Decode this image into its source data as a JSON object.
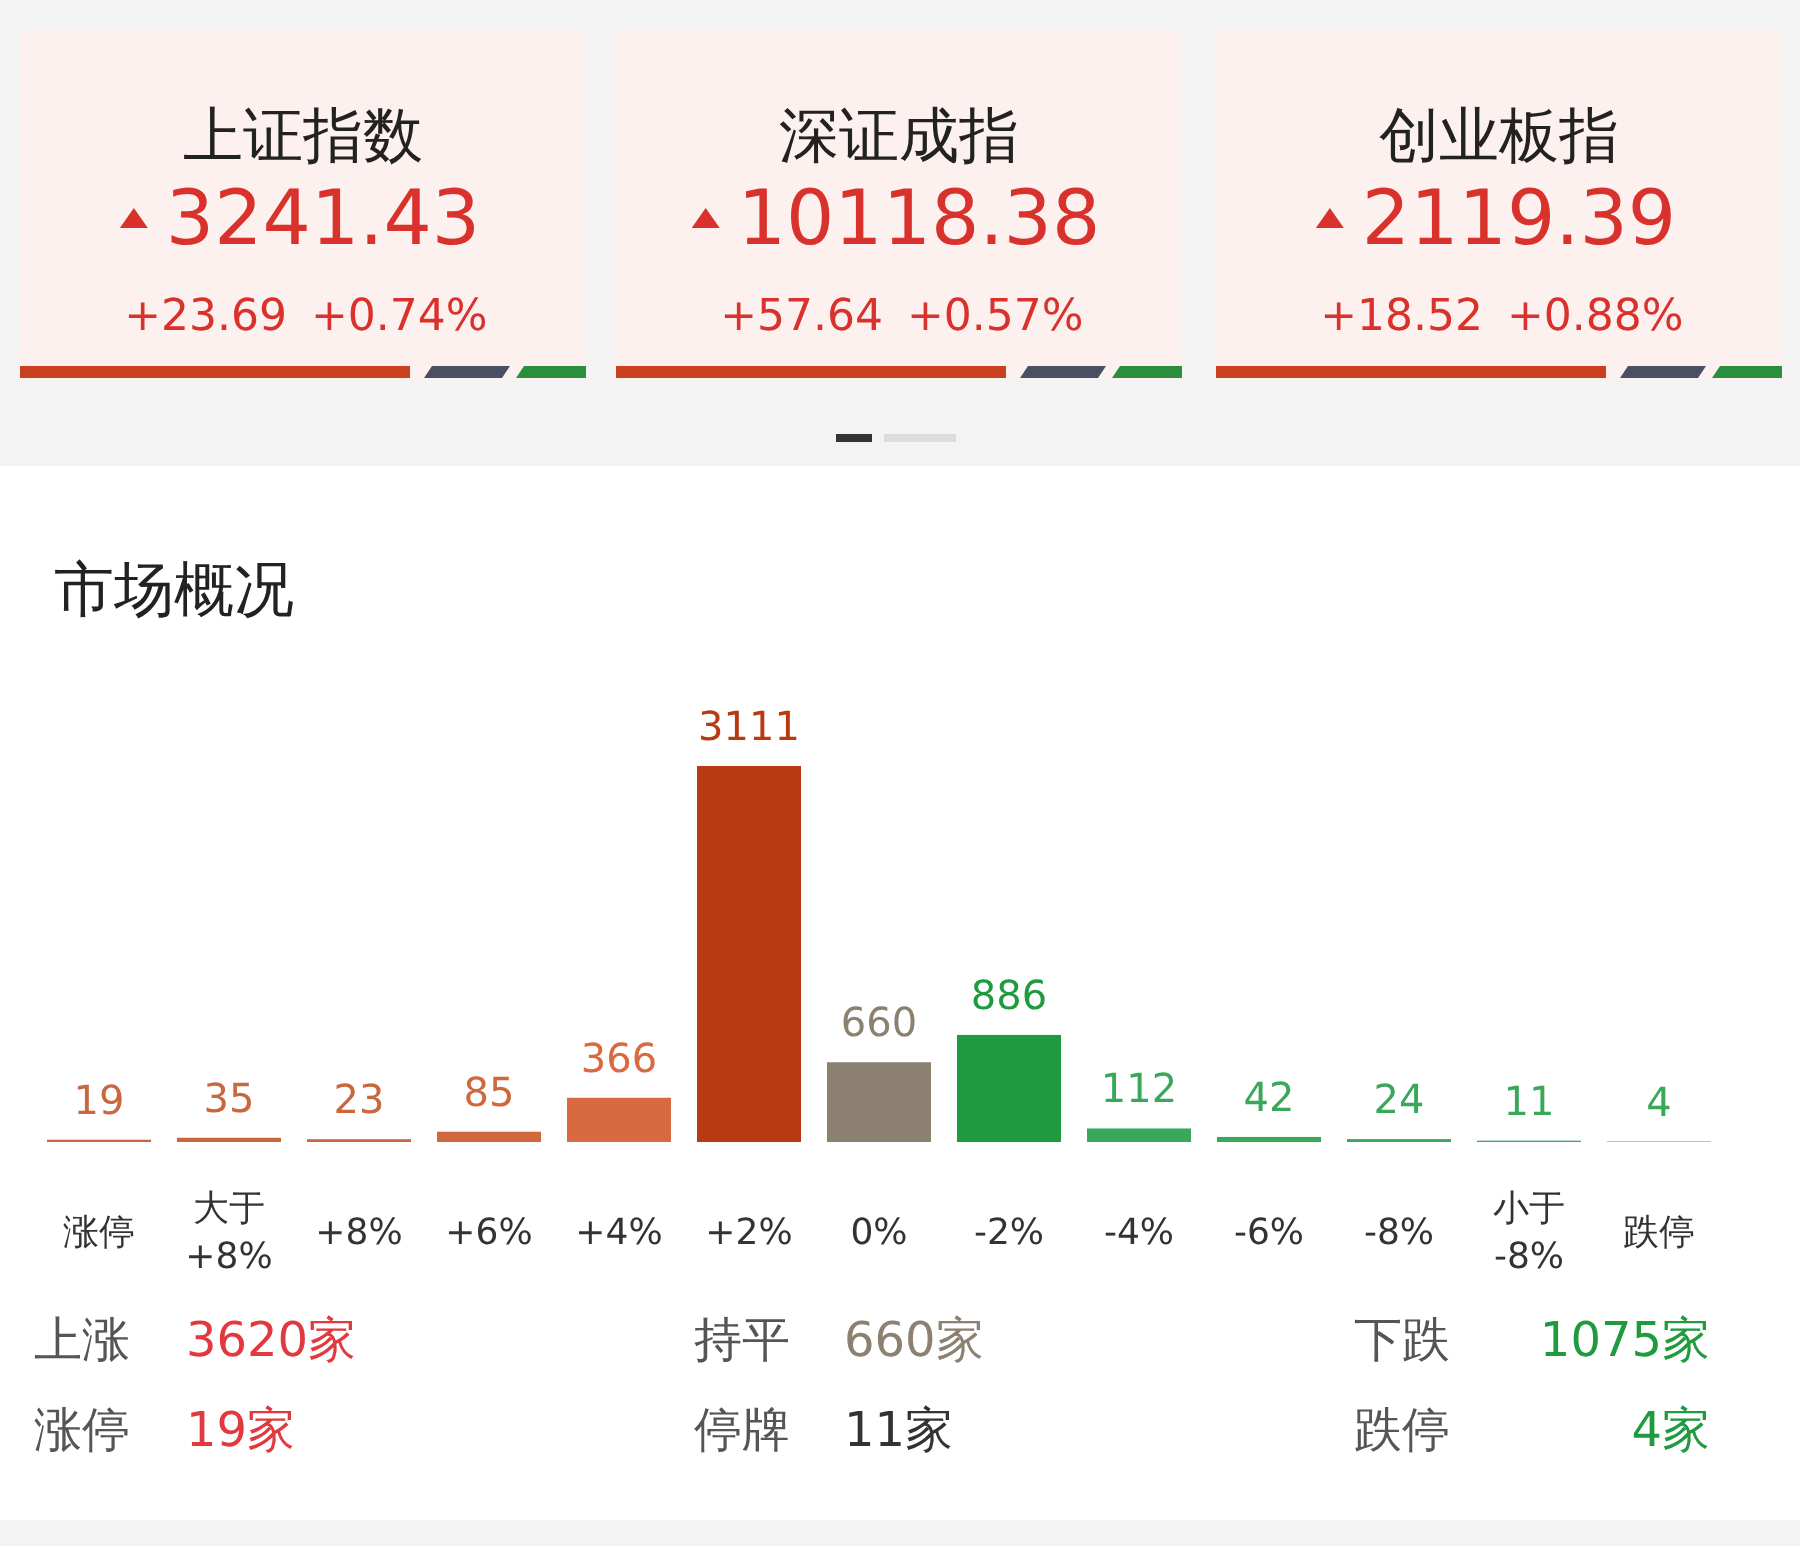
{
  "chart_data": [
    {
      "type": "other",
      "title": "上证指数",
      "annotations": [
        "3241.43",
        "+23.69",
        "+0.74%"
      ]
    },
    {
      "type": "other",
      "title": "深证成指",
      "annotations": [
        "10118.38",
        "+57.64",
        "+0.57%"
      ]
    },
    {
      "type": "other",
      "title": "创业板指",
      "annotations": [
        "2119.39",
        "+18.52",
        "+0.88%"
      ]
    },
    {
      "type": "bar",
      "title": "市场概况",
      "categories": [
        "涨停",
        "大于 +8%",
        "+8%",
        "+6%",
        "+4%",
        "+2%",
        "0%",
        "-2%",
        "-4%",
        "-6%",
        "-8%",
        "小于 -8%",
        "跌停"
      ],
      "values": [
        19,
        35,
        23,
        85,
        366,
        3111,
        660,
        886,
        112,
        42,
        24,
        11,
        4
      ],
      "colors": [
        "#c9673f",
        "#c9673f",
        "#c9673f",
        "#d0683c",
        "#d9693e",
        "#b83a10",
        "#8c8070",
        "#1f9a3f",
        "#3aa85a",
        "#3aa85a",
        "#3aa85a",
        "#3aa85a",
        "#3aa85a"
      ],
      "data_labels": true,
      "annotations": [
        "上涨",
        "3620家",
        "持平",
        "660家",
        "下跌",
        "1075家",
        "涨停",
        "19家",
        "停牌",
        "11家",
        "跌停",
        "4家"
      ]
    }
  ]
}
